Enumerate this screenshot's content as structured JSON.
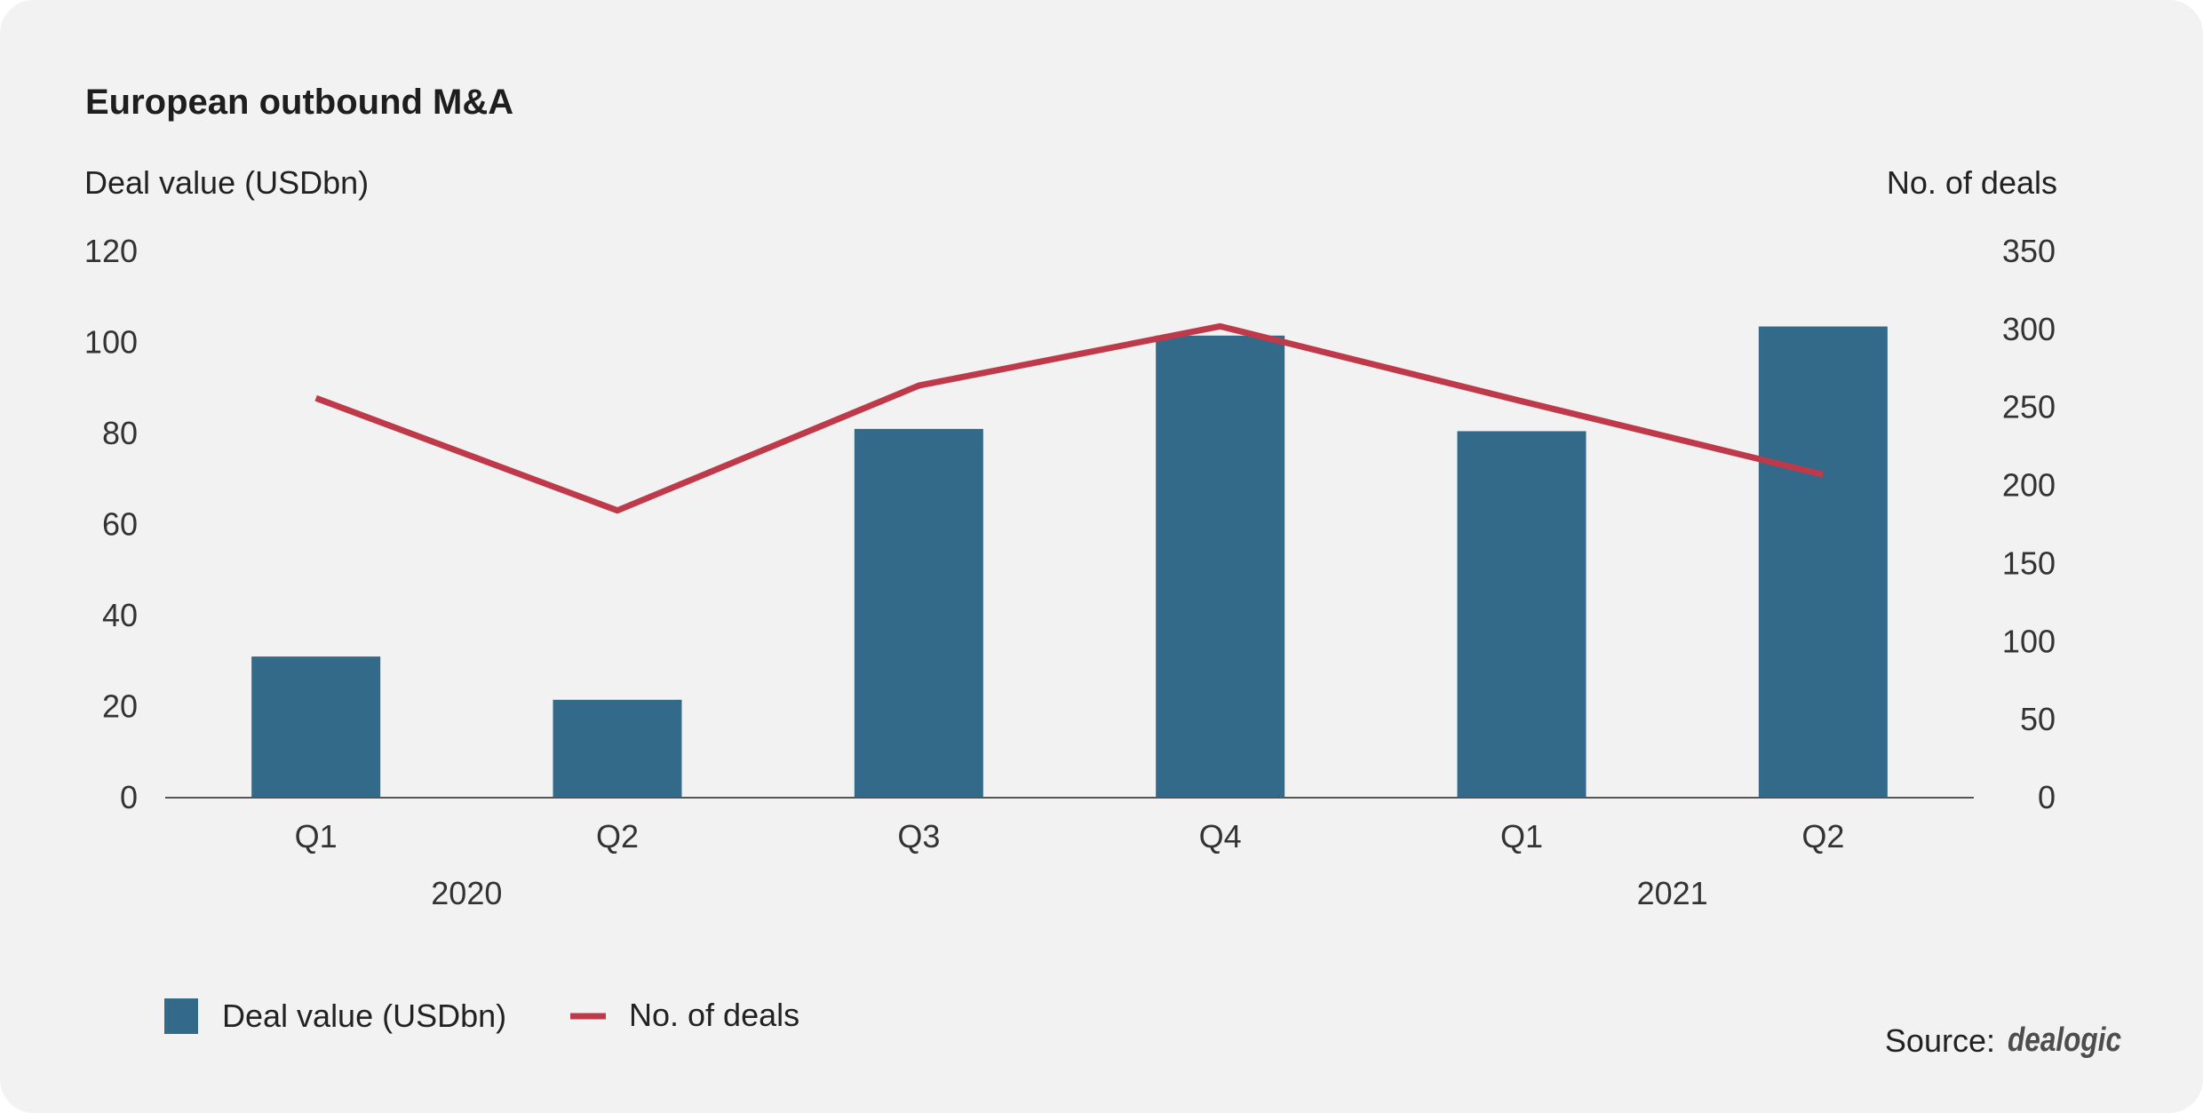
{
  "chart_data": {
    "type": "bar",
    "title": "European outbound M&A",
    "categories": [
      "Q1",
      "Q2",
      "Q3",
      "Q4",
      "Q1",
      "Q2"
    ],
    "category_groups": [
      {
        "label": "2020",
        "start": 0,
        "end": 1
      },
      {
        "label": "2021",
        "start": 4,
        "end": 5
      }
    ],
    "series": [
      {
        "name": "Deal value (USDbn)",
        "type": "bar",
        "axis": "left",
        "color": "#336a89",
        "values": [
          31,
          21.5,
          81,
          101.5,
          80.5,
          103.5
        ]
      },
      {
        "name": "No. of deals",
        "type": "line",
        "axis": "right",
        "color": "#be3a4a",
        "values": [
          256,
          184,
          264,
          302,
          254,
          207
        ]
      }
    ],
    "y_left": {
      "label": "Deal value (USDbn)",
      "range": [
        0,
        120
      ],
      "ticks": [
        0,
        20,
        40,
        60,
        80,
        100,
        120
      ]
    },
    "y_right": {
      "label": "No. of deals",
      "range": [
        0,
        350
      ],
      "ticks": [
        0,
        50,
        100,
        150,
        200,
        250,
        300,
        350
      ]
    },
    "grid": false,
    "legend_position": "bottom-left",
    "source_label": "Source:",
    "source_logo": "dealogic"
  }
}
